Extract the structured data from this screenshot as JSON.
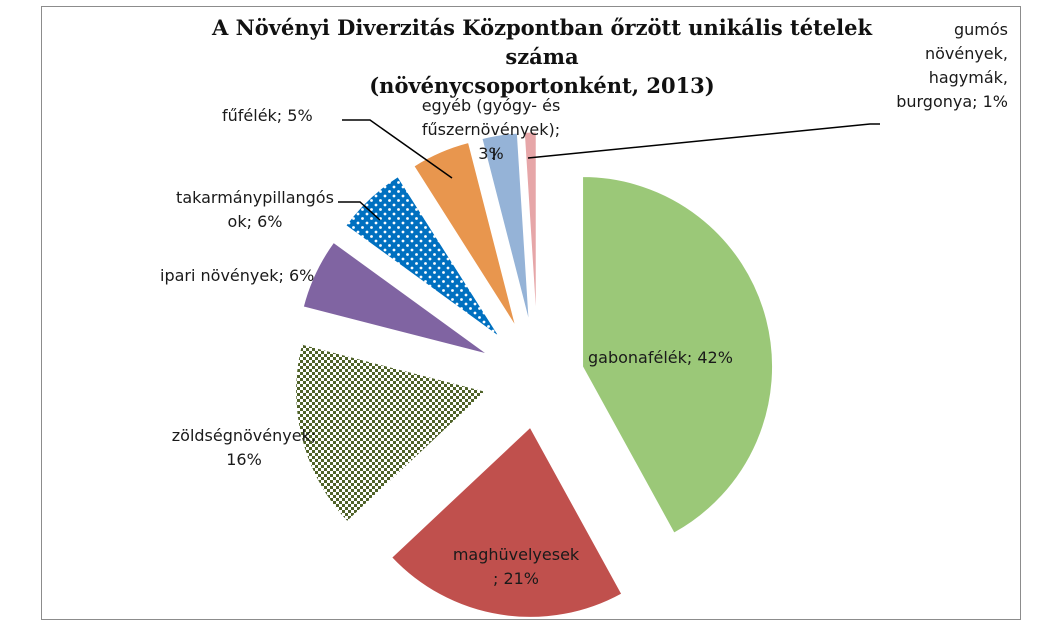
{
  "chart_data": {
    "type": "pie",
    "title": "A Növényi Diverzitás Központban őrzött unikális tételek száma",
    "subtitle": "(növénycsoportonként,  2013)",
    "slices": [
      {
        "label": "gabonafélék; 42%",
        "value": 42,
        "color": "#9bc878",
        "pattern": "none"
      },
      {
        "label": "maghüvelyesek\n; 21%",
        "value": 21,
        "color": "#c0504d",
        "pattern": "none"
      },
      {
        "label": "zöldségnövények;\n16%",
        "value": 16,
        "color": "#4f6228",
        "pattern": "dots-dense"
      },
      {
        "label": "ipari növények; 6%",
        "value": 6,
        "color": "#8064a2",
        "pattern": "none"
      },
      {
        "label": "takarmánypillangós\nok; 6%",
        "value": 6,
        "color": "#0070c0",
        "pattern": "dots-white"
      },
      {
        "label": "fűfélék; 5%",
        "value": 5,
        "color": "#e8964e",
        "pattern": "none"
      },
      {
        "label": "egyéb (gyógy- és\nfűszernövények);\n3%",
        "value": 3,
        "color": "#95b3d7",
        "pattern": "none"
      },
      {
        "label": "gumós\nnövények,\nhagymák,\nburgonya; 1%",
        "value": 1,
        "color": "#e6a6a8",
        "pattern": "none"
      }
    ]
  }
}
